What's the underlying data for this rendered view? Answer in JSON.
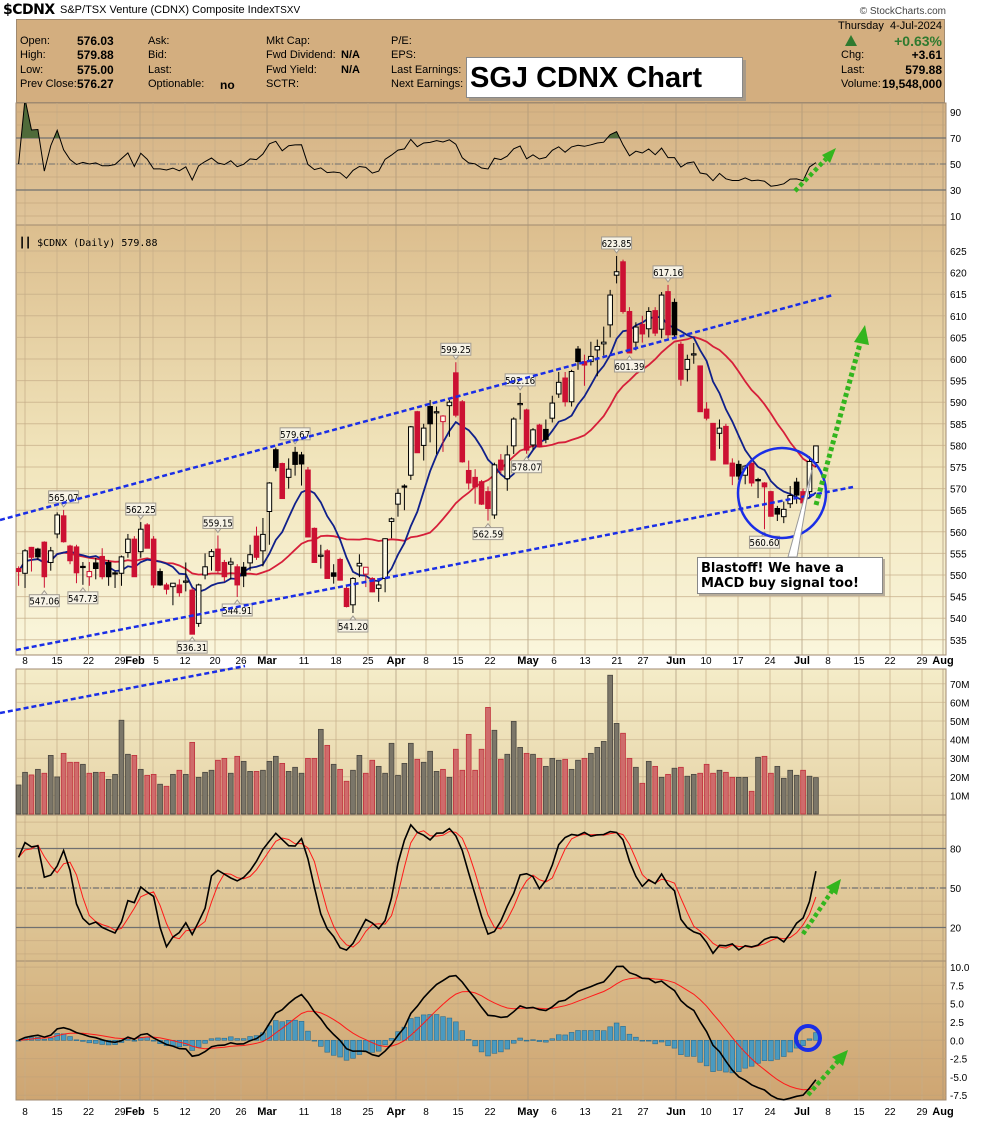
{
  "header": {
    "symbol": "$CDNX",
    "name": "S&P/TSX Venture (CDNX) Composite Index",
    "exchange": "TSXV",
    "watermark": "© StockCharts.com",
    "date_day": "Thursday",
    "date": "4-Jul-2024",
    "pct_change": "+0.63%",
    "up_color": "#2f7a2f",
    "fields": {
      "open_label": "Open:",
      "open": "576.03",
      "high_label": "High:",
      "high": "579.88",
      "low_label": "Low:",
      "low": "575.00",
      "prev_close_label": "Prev Close:",
      "prev_close": "576.27",
      "ask_label": "Ask:",
      "bid_label": "Bid:",
      "last_label": "Last:",
      "optionable_label": "Optionable:",
      "optionable": "no",
      "mkt_cap_label": "Mkt Cap:",
      "fwd_dividend_label": "Fwd Dividend:",
      "fwd_dividend": "N/A",
      "fwd_yield_label": "Fwd Yield:",
      "fwd_yield": "N/A",
      "sctr_label": "SCTR:",
      "pe_label": "P/E:",
      "eps_label": "EPS:",
      "last_earnings_label": "Last Earnings:",
      "next_earnings_label": "Next Earnings:",
      "chg_label": "Chg:",
      "chg": "+3.61",
      "last2_label": "Last:",
      "last2": "579.88",
      "volume_label": "Volume:",
      "volume": "19,548,000"
    }
  },
  "annotations": {
    "title_box": "SGJ CDNX Chart",
    "callout": "Blastoff!  We have a MACD buy signal too!"
  },
  "chart_data": {
    "type": "candlestick",
    "legend": "$CDNX (Daily) 579.88",
    "price_axis": {
      "ylim": [
        531.5,
        631
      ],
      "ticks": [
        535,
        540,
        545,
        550,
        555,
        560,
        565,
        570,
        575,
        580,
        585,
        590,
        595,
        600,
        605,
        610,
        615,
        620,
        625
      ]
    },
    "x_ticks": [
      {
        "label": "8",
        "bold": false
      },
      {
        "label": "15",
        "bold": false
      },
      {
        "label": "22",
        "bold": false
      },
      {
        "label": "29",
        "bold": false
      },
      {
        "label": "Feb",
        "bold": true
      },
      {
        "label": "5",
        "bold": false
      },
      {
        "label": "12",
        "bold": false
      },
      {
        "label": "20",
        "bold": false
      },
      {
        "label": "26",
        "bold": false
      },
      {
        "label": "Mar",
        "bold": true
      },
      {
        "label": "11",
        "bold": false
      },
      {
        "label": "18",
        "bold": false
      },
      {
        "label": "25",
        "bold": false
      },
      {
        "label": "Apr",
        "bold": true
      },
      {
        "label": "8",
        "bold": false
      },
      {
        "label": "15",
        "bold": false
      },
      {
        "label": "22",
        "bold": false
      },
      {
        "label": "May",
        "bold": true
      },
      {
        "label": "6",
        "bold": false
      },
      {
        "label": "13",
        "bold": false
      },
      {
        "label": "21",
        "bold": false
      },
      {
        "label": "27",
        "bold": false
      },
      {
        "label": "Jun",
        "bold": true
      },
      {
        "label": "10",
        "bold": false
      },
      {
        "label": "17",
        "bold": false
      },
      {
        "label": "24",
        "bold": false
      },
      {
        "label": "Jul",
        "bold": true
      },
      {
        "label": "8",
        "bold": false
      },
      {
        "label": "15",
        "bold": false
      },
      {
        "label": "22",
        "bold": false
      },
      {
        "label": "29",
        "bold": false
      },
      {
        "label": "Aug",
        "bold": true
      }
    ],
    "ohlc": [
      [
        551.5,
        552,
        547.5,
        550.8
      ],
      [
        550.4,
        556,
        547,
        555.6
      ],
      [
        556.4,
        556.5,
        550.8,
        554.1
      ],
      [
        556,
        556.3,
        553.5,
        554.2
      ],
      [
        557.6,
        557.8,
        547.06,
        549.6
      ],
      [
        552.9,
        556.5,
        551,
        555.6
      ],
      [
        559.5,
        564.5,
        558.5,
        563.9
      ],
      [
        563.7,
        565.07,
        557.5,
        557.7
      ],
      [
        556.7,
        557,
        552.5,
        553.3
      ],
      [
        556.5,
        557,
        548.1,
        550.5
      ],
      [
        552,
        553,
        547.73,
        551.8
      ],
      [
        549.6,
        553,
        547.5,
        550.8
      ],
      [
        552.8,
        554,
        549,
        551.5
      ],
      [
        554.3,
        556.2,
        549,
        549.6
      ],
      [
        552.9,
        553.5,
        547.5,
        549.6
      ],
      [
        550.5,
        551,
        547,
        550.4
      ],
      [
        550.4,
        554.5,
        547.5,
        554.2
      ],
      [
        555.2,
        559.5,
        554,
        558.3
      ],
      [
        558.3,
        559,
        549.6,
        549.6
      ],
      [
        555.4,
        562.25,
        554,
        560.6
      ],
      [
        561.6,
        562,
        556.2,
        556.2
      ],
      [
        558.3,
        559,
        547,
        547.7
      ],
      [
        550.8,
        551.5,
        547.5,
        547.7
      ],
      [
        547.7,
        548.2,
        545.5,
        546.7
      ],
      [
        547.3,
        548,
        543,
        548.1
      ],
      [
        547.7,
        549,
        545,
        545.9
      ],
      [
        548.5,
        552.9,
        546.2,
        548.6
      ],
      [
        546.5,
        547,
        536.31,
        536.3
      ],
      [
        538.8,
        548,
        538,
        547.7
      ],
      [
        550,
        555,
        549,
        551.9
      ],
      [
        554.3,
        556,
        551,
        555.4
      ],
      [
        556,
        559.15,
        550.4,
        551
      ],
      [
        552.9,
        553.5,
        548.5,
        549.6
      ],
      [
        552.5,
        554,
        549,
        553
      ],
      [
        551.9,
        552.5,
        544.91,
        547.7
      ],
      [
        551.8,
        553,
        547.2,
        549.8
      ],
      [
        552.8,
        557,
        551,
        554.7
      ],
      [
        559,
        561.2,
        553.5,
        554.1
      ],
      [
        555.6,
        563.2,
        552,
        559.4
      ],
      [
        564.7,
        571.5,
        557,
        571.3
      ],
      [
        579,
        579.5,
        574,
        574.9
      ],
      [
        575.8,
        576,
        567.7,
        567.7
      ],
      [
        572.6,
        577,
        570,
        574.5
      ],
      [
        578.4,
        579.67,
        573,
        575.6
      ],
      [
        577.8,
        578.5,
        570.7,
        575.7
      ],
      [
        574.3,
        575,
        558.8,
        558.8
      ],
      [
        560.8,
        561,
        552.9,
        552.9
      ],
      [
        554.5,
        557,
        551.5,
        554.6
      ],
      [
        555.6,
        556,
        549.2,
        549.2
      ],
      [
        550.5,
        552.5,
        548,
        549.7
      ],
      [
        553.6,
        554,
        548.7,
        548.8
      ],
      [
        546.9,
        547.5,
        542.5,
        542.7
      ],
      [
        543.1,
        549.5,
        541.2,
        549.2
      ],
      [
        552.1,
        554.8,
        549.5,
        552.7
      ],
      [
        550.2,
        551.5,
        547.2,
        551.8
      ],
      [
        549.2,
        549.5,
        546,
        546.1
      ],
      [
        546.9,
        548.5,
        543.8,
        547.7
      ],
      [
        549.2,
        558.5,
        546,
        558.4
      ],
      [
        562.4,
        563.3,
        558.5,
        563
      ],
      [
        566.4,
        570,
        563.5,
        568.9
      ],
      [
        570.6,
        571,
        565,
        570.4
      ],
      [
        573.1,
        584.5,
        572,
        584.3
      ],
      [
        587.8,
        588,
        578.3,
        578.3
      ],
      [
        580,
        585,
        576.5,
        584
      ],
      [
        589,
        590.5,
        580.7,
        585
      ],
      [
        587.6,
        589,
        578,
        587.8
      ],
      [
        585.5,
        587,
        578.5,
        586.8
      ],
      [
        589.2,
        590.5,
        582,
        590
      ],
      [
        596.8,
        599.25,
        586.5,
        587
      ],
      [
        590.1,
        590.5,
        576,
        576.2
      ],
      [
        574.2,
        576.5,
        569.8,
        571.3
      ],
      [
        572.6,
        574.5,
        566.5,
        570.4
      ],
      [
        571.6,
        572,
        566.2,
        566.4
      ],
      [
        569.3,
        570.5,
        562.59,
        565.4
      ],
      [
        563.9,
        576,
        563,
        575.5
      ],
      [
        576.6,
        578,
        573.5,
        574.3
      ],
      [
        572.3,
        580,
        569.5,
        577.8
      ],
      [
        579.9,
        586.5,
        578,
        586.1
      ],
      [
        589.5,
        592.16,
        586,
        589.7
      ],
      [
        588.2,
        588.5,
        578.07,
        578.9
      ],
      [
        580.1,
        584,
        579,
        583.6
      ],
      [
        584.7,
        585,
        579.6,
        579.7
      ],
      [
        583.7,
        586,
        580.5,
        581.4
      ],
      [
        586.3,
        591.5,
        585.3,
        589.8
      ],
      [
        591.9,
        597,
        591,
        594.6
      ],
      [
        595.6,
        597,
        589,
        590.1
      ],
      [
        590.1,
        597.5,
        589,
        597.1
      ],
      [
        602.3,
        603,
        597.5,
        599.4
      ],
      [
        599.4,
        601,
        593.8,
        598.6
      ],
      [
        599.4,
        604,
        598.5,
        600.6
      ],
      [
        602.1,
        604.5,
        596,
        602.9
      ],
      [
        603.5,
        607.5,
        600.8,
        603.9
      ],
      [
        607.9,
        616,
        605,
        614.8
      ],
      [
        619.4,
        623.85,
        617.5,
        620.2
      ],
      [
        622.5,
        623,
        610.5,
        611
      ],
      [
        611,
        612,
        601.39,
        601.4
      ],
      [
        603.9,
        608.5,
        602,
        607.4
      ],
      [
        608,
        610,
        603.8,
        605.8
      ],
      [
        607,
        612,
        605,
        611
      ],
      [
        611.2,
        612,
        605.3,
        606
      ],
      [
        606.9,
        615.5,
        604.8,
        614.8
      ],
      [
        615.6,
        617.16,
        604.5,
        605.6
      ],
      [
        613.1,
        614,
        605,
        605.6
      ],
      [
        603.4,
        604,
        593.8,
        595.3
      ],
      [
        597.6,
        601,
        594.8,
        599.9
      ],
      [
        601.1,
        603.7,
        598.9,
        601.2
      ],
      [
        598.4,
        598.5,
        587.8,
        587.8
      ],
      [
        588.4,
        590,
        585.8,
        586.3
      ],
      [
        585.1,
        585.2,
        576.6,
        576.6
      ],
      [
        582.8,
        586,
        579.2,
        584
      ],
      [
        584.4,
        585,
        575.7,
        575.7
      ],
      [
        575.9,
        577,
        570.8,
        572.9
      ],
      [
        575.6,
        576.5,
        572,
        572.9
      ],
      [
        573.1,
        575.5,
        571,
        575.2
      ],
      [
        575.9,
        576,
        570.5,
        571.3
      ],
      [
        572.1,
        572.5,
        567.8,
        571.8
      ],
      [
        571.3,
        571.5,
        560.6,
        570.4
      ],
      [
        569.3,
        569.5,
        563.5,
        563.6
      ],
      [
        565.4,
        566,
        562.5,
        564.1
      ],
      [
        563.5,
        567,
        562,
        565.2
      ],
      [
        566.5,
        570.6,
        565.5,
        568.4
      ],
      [
        571.5,
        572.5,
        566.5,
        568.5
      ],
      [
        569.3,
        570,
        566.5,
        566.7
      ],
      [
        569.3,
        577.5,
        568,
        576.27
      ],
      [
        576.03,
        579.88,
        575,
        579.88
      ]
    ],
    "volume_millions": [
      15.6,
      22.4,
      21,
      24,
      21.9,
      31.5,
      19.9,
      32.6,
      27.8,
      27.8,
      26.7,
      21.9,
      22.4,
      22.4,
      18.6,
      21.3,
      50.4,
      32.1,
      31.5,
      24,
      20.8,
      21.3,
      16,
      14.9,
      21.3,
      23.5,
      21.3,
      38.5,
      19.7,
      22.4,
      23.5,
      28.9,
      29.9,
      21.9,
      31,
      28.3,
      22.9,
      22.9,
      23.5,
      28.3,
      31,
      27.2,
      22.9,
      25.1,
      21.9,
      29.9,
      29.9,
      45.5,
      36.9,
      26.7,
      24,
      17.6,
      23.5,
      31.5,
      21.9,
      28.9,
      25.6,
      21.9,
      38,
      20.8,
      27.2,
      38,
      29.4,
      27.8,
      33.7,
      22.9,
      24,
      19.7,
      34.8,
      23.5,
      42.8,
      23.5,
      34.8,
      57.3,
      45,
      29.4,
      32.1,
      49.8,
      35.8,
      32.6,
      32.1,
      29.9,
      25.6,
      29.9,
      28.9,
      29.4,
      24,
      28.9,
      29.9,
      32.6,
      35.8,
      39,
      74.6,
      48.7,
      43.4,
      29.9,
      25.1,
      16.5,
      28.3,
      25.6,
      19.7,
      21.3,
      24.6,
      25.1,
      20.3,
      21.3,
      21.9,
      26.7,
      21.9,
      23.5,
      22.4,
      19.7,
      19.7,
      19.7,
      12.2,
      30.5,
      31,
      21.9,
      25.6,
      19.2,
      23.5,
      20.8,
      23.5,
      20.3,
      19.548
    ],
    "volume_axis": {
      "ticks": [
        "10M",
        "20M",
        "30M",
        "40M",
        "50M",
        "60M",
        "70M"
      ]
    },
    "price_labels": [
      {
        "bar": 7,
        "value": "565.07",
        "at": "high"
      },
      {
        "bar": 19,
        "value": "562.25",
        "at": "high"
      },
      {
        "bar": 31,
        "value": "559.15",
        "at": "high"
      },
      {
        "bar": 43,
        "value": "579.67",
        "at": "high"
      },
      {
        "bar": 68,
        "value": "599.25",
        "at": "high"
      },
      {
        "bar": 78,
        "value": "592.16",
        "at": "high"
      },
      {
        "bar": 93,
        "value": "623.85",
        "at": "high"
      },
      {
        "bar": 101,
        "value": "617.16",
        "at": "high"
      },
      {
        "bar": 4,
        "value": "547.06",
        "at": "low"
      },
      {
        "bar": 10,
        "value": "547.73",
        "at": "low"
      },
      {
        "bar": 27,
        "value": "536.31",
        "at": "low"
      },
      {
        "bar": 34,
        "value": "544.91",
        "at": "low"
      },
      {
        "bar": 52,
        "value": "541.20",
        "at": "low"
      },
      {
        "bar": 73,
        "value": "562.59",
        "at": "low"
      },
      {
        "bar": 79,
        "value": "578.07",
        "at": "low"
      },
      {
        "bar": 95,
        "value": "601.39",
        "at": "low"
      },
      {
        "bar": 116,
        "value": "560.60",
        "at": "low"
      }
    ],
    "rsi_axis": {
      "ticks": [
        10,
        30,
        50,
        70,
        90
      ],
      "overbought": 70,
      "oversold": 30
    },
    "stoch_axis": {
      "ticks": [
        20,
        50,
        80
      ]
    },
    "macd_axis": {
      "ticks": [
        "10.0",
        "7.5",
        "5.0",
        "2.5",
        "0.0",
        "-2.5",
        "-5.0",
        "-7.5"
      ]
    },
    "colors": {
      "up_candle": "#000000",
      "down_candle": "#cc1133",
      "ma_fast": "#10208a",
      "ma_slow": "#d61f3a",
      "trendline": "#1a2ee6",
      "arrow": "#33b51e",
      "histogram": "#4a9ac0",
      "signal": "#ff1a1a"
    }
  }
}
